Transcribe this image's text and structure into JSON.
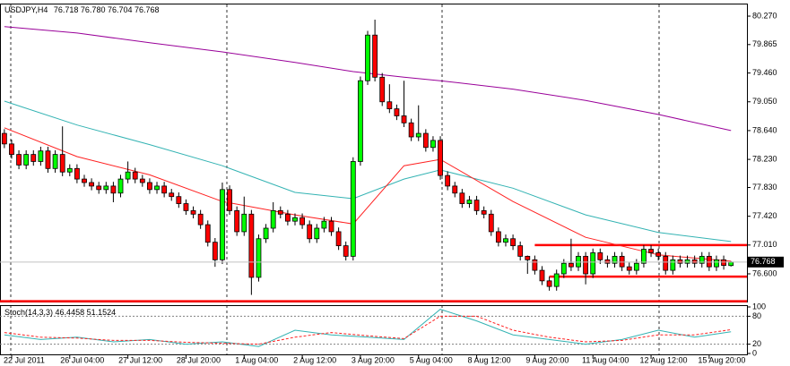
{
  "chart_data": [
    {
      "type": "candlestick",
      "title": "USDJPY,H4",
      "ohlc_labels": [
        "76.718",
        "76.780",
        "76.704",
        "76.768"
      ],
      "xlim": [
        -0.6,
        102.2
      ],
      "ylim": [
        76.205,
        80.436
      ],
      "yticks": [
        {
          "value": 80.27,
          "label": "80.270"
        },
        {
          "value": 79.865,
          "label": "79.865"
        },
        {
          "value": 79.46,
          "label": "79.460"
        },
        {
          "value": 79.05,
          "label": "79.050"
        },
        {
          "value": 78.64,
          "label": "78.640"
        },
        {
          "value": 78.23,
          "label": "78.230"
        },
        {
          "value": 77.83,
          "label": "77.830"
        },
        {
          "value": 77.42,
          "label": "77.420"
        },
        {
          "value": 77.01,
          "label": "77.010"
        },
        {
          "value": 76.6,
          "label": "76.600"
        }
      ],
      "xticks": [
        {
          "value": 1,
          "label": "22 Jul 2011"
        },
        {
          "value": 9,
          "label": "26 Jul 04:00"
        },
        {
          "value": 17,
          "label": "27 Jul 12:00"
        },
        {
          "value": 25,
          "label": "28 Jul 20:00"
        },
        {
          "value": 33,
          "label": "1 Aug 04:00"
        },
        {
          "value": 41,
          "label": "2 Aug 12:00"
        },
        {
          "value": 49,
          "label": "3 Aug 20:00"
        },
        {
          "value": 57,
          "label": "5 Aug 04:00"
        },
        {
          "value": 65,
          "label": "8 Aug 12:00"
        },
        {
          "value": 73,
          "label": "9 Aug 20:00"
        },
        {
          "value": 81,
          "label": "11 Aug 04:00"
        },
        {
          "value": 89,
          "label": "12 Aug 12:00"
        },
        {
          "value": 97,
          "label": "15 Aug 20:00"
        }
      ],
      "bull_color": "#00ff00",
      "bear_color": "#ff0000",
      "candles": [
        [
          78.6,
          78.66,
          78.39,
          78.45
        ],
        [
          78.45,
          78.51,
          78.24,
          78.3
        ],
        [
          78.3,
          78.36,
          78.09,
          78.15
        ],
        [
          78.15,
          78.36,
          78.09,
          78.3
        ],
        [
          78.3,
          78.36,
          78.14,
          78.2
        ],
        [
          78.2,
          78.41,
          78.14,
          78.35
        ],
        [
          78.35,
          78.41,
          78.04,
          78.1
        ],
        [
          78.1,
          78.36,
          78.04,
          78.3
        ],
        [
          78.3,
          78.7,
          77.99,
          78.05
        ],
        [
          78.05,
          78.16,
          77.99,
          78.1
        ],
        [
          78.1,
          78.16,
          77.89,
          77.95
        ],
        [
          77.95,
          78.01,
          77.84,
          77.9
        ],
        [
          77.9,
          77.96,
          77.79,
          77.85
        ],
        [
          77.85,
          77.91,
          77.74,
          77.8
        ],
        [
          77.8,
          77.91,
          77.74,
          77.85
        ],
        [
          77.85,
          77.91,
          77.62,
          77.75
        ],
        [
          77.75,
          78.01,
          77.69,
          77.95
        ],
        [
          77.95,
          78.2,
          77.89,
          78.05
        ],
        [
          78.05,
          78.11,
          77.89,
          77.95
        ],
        [
          77.95,
          78.01,
          77.84,
          77.9
        ],
        [
          77.9,
          77.96,
          77.74,
          77.8
        ],
        [
          77.8,
          77.91,
          77.74,
          77.85
        ],
        [
          77.85,
          77.91,
          77.69,
          77.75
        ],
        [
          77.75,
          77.81,
          77.64,
          77.7
        ],
        [
          77.7,
          77.76,
          77.54,
          77.6
        ],
        [
          77.6,
          77.66,
          77.44,
          77.5
        ],
        [
          77.5,
          77.56,
          77.39,
          77.45
        ],
        [
          77.45,
          77.51,
          77.24,
          77.3
        ],
        [
          77.3,
          77.36,
          76.99,
          77.05
        ],
        [
          77.05,
          77.11,
          76.7,
          76.8
        ],
        [
          76.8,
          77.9,
          76.74,
          77.8
        ],
        [
          77.8,
          77.86,
          77.44,
          77.5
        ],
        [
          77.5,
          77.56,
          77.14,
          77.2
        ],
        [
          77.2,
          77.7,
          77.14,
          77.45
        ],
        [
          77.45,
          77.51,
          76.3,
          76.55
        ],
        [
          76.55,
          77.16,
          76.49,
          77.1
        ],
        [
          77.1,
          77.31,
          77.04,
          77.25
        ],
        [
          77.25,
          77.62,
          77.19,
          77.5
        ],
        [
          77.5,
          77.56,
          77.39,
          77.45
        ],
        [
          77.45,
          77.51,
          77.29,
          77.35
        ],
        [
          77.35,
          77.46,
          77.29,
          77.4
        ],
        [
          77.4,
          77.46,
          77.24,
          77.3
        ],
        [
          77.3,
          77.36,
          77.04,
          77.1
        ],
        [
          77.1,
          77.31,
          77.04,
          77.25
        ],
        [
          77.25,
          77.41,
          77.19,
          77.35
        ],
        [
          77.35,
          77.41,
          77.14,
          77.2
        ],
        [
          77.2,
          77.26,
          76.94,
          77.0
        ],
        [
          77.0,
          77.06,
          76.79,
          76.85
        ],
        [
          76.85,
          78.26,
          76.79,
          78.2
        ],
        [
          78.2,
          79.41,
          78.14,
          79.35
        ],
        [
          79.35,
          80.06,
          79.29,
          80.0
        ],
        [
          80.0,
          80.22,
          79.34,
          79.4
        ],
        [
          79.4,
          79.46,
          78.99,
          79.05
        ],
        [
          79.05,
          79.3,
          78.89,
          78.95
        ],
        [
          78.95,
          79.01,
          78.79,
          78.85
        ],
        [
          78.85,
          79.35,
          78.69,
          78.75
        ],
        [
          78.75,
          78.81,
          78.49,
          78.55
        ],
        [
          78.55,
          79.0,
          78.49,
          78.6
        ],
        [
          78.6,
          78.66,
          78.34,
          78.4
        ],
        [
          78.4,
          78.56,
          78.34,
          78.5
        ],
        [
          78.5,
          78.56,
          77.94,
          78.0
        ],
        [
          78.0,
          78.06,
          77.79,
          77.85
        ],
        [
          77.85,
          77.91,
          77.69,
          77.75
        ],
        [
          77.75,
          77.81,
          77.54,
          77.6
        ],
        [
          77.6,
          77.71,
          77.54,
          77.65
        ],
        [
          77.65,
          77.71,
          77.44,
          77.5
        ],
        [
          77.5,
          77.56,
          77.39,
          77.45
        ],
        [
          77.45,
          77.51,
          77.14,
          77.2
        ],
        [
          77.2,
          77.26,
          76.99,
          77.05
        ],
        [
          77.05,
          77.16,
          76.99,
          77.1
        ],
        [
          77.1,
          77.16,
          76.94,
          77.0
        ],
        [
          77.0,
          77.06,
          76.79,
          76.85
        ],
        [
          76.85,
          76.86,
          76.6,
          76.8
        ],
        [
          76.8,
          76.86,
          76.59,
          76.65
        ],
        [
          76.65,
          76.71,
          76.44,
          76.5
        ],
        [
          76.5,
          76.56,
          76.36,
          76.42
        ],
        [
          76.42,
          76.66,
          76.36,
          76.6
        ],
        [
          76.6,
          76.81,
          76.54,
          76.75
        ],
        [
          76.75,
          77.1,
          76.64,
          76.7
        ],
        [
          76.7,
          76.91,
          76.64,
          76.85
        ],
        [
          76.85,
          76.91,
          76.45,
          76.6
        ],
        [
          76.6,
          76.96,
          76.54,
          76.9
        ],
        [
          76.9,
          76.96,
          76.74,
          76.8
        ],
        [
          76.8,
          76.86,
          76.69,
          76.75
        ],
        [
          76.75,
          76.91,
          76.69,
          76.85
        ],
        [
          76.85,
          76.91,
          76.64,
          76.7
        ],
        [
          76.7,
          76.76,
          76.59,
          76.65
        ],
        [
          76.65,
          76.81,
          76.59,
          76.75
        ],
        [
          76.75,
          77.01,
          76.69,
          76.95
        ],
        [
          76.95,
          77.01,
          76.84,
          76.9
        ],
        [
          76.9,
          76.96,
          76.79,
          76.85
        ],
        [
          76.85,
          76.91,
          76.59,
          76.65
        ],
        [
          76.65,
          76.86,
          76.59,
          76.8
        ],
        [
          76.8,
          76.86,
          76.69,
          76.75
        ],
        [
          76.75,
          76.86,
          76.69,
          76.8
        ],
        [
          76.8,
          76.86,
          76.69,
          76.75
        ],
        [
          76.75,
          76.91,
          76.69,
          76.85
        ],
        [
          76.85,
          76.91,
          76.64,
          76.7
        ],
        [
          76.7,
          76.86,
          76.64,
          76.8
        ],
        [
          76.8,
          76.86,
          76.66,
          76.72
        ],
        [
          76.718,
          76.78,
          76.704,
          76.768
        ]
      ],
      "ma_x": [
        0,
        10,
        20,
        30,
        40,
        48,
        55,
        60,
        70,
        80,
        90,
        100
      ],
      "series": [
        {
          "color": "#990099",
          "values": [
            80.12,
            80.03,
            79.89,
            79.76,
            79.61,
            79.48,
            79.4,
            79.35,
            79.23,
            79.07,
            78.87,
            78.64
          ]
        },
        {
          "color": "#33b3b3",
          "values": [
            79.06,
            78.72,
            78.44,
            78.14,
            77.76,
            77.67,
            77.95,
            78.08,
            77.82,
            77.44,
            77.19,
            77.06
          ]
        },
        {
          "color": "#ff2020",
          "values": [
            78.68,
            78.27,
            78.01,
            77.63,
            77.44,
            77.31,
            78.14,
            78.23,
            77.63,
            77.12,
            76.87,
            76.78
          ]
        }
      ],
      "hlines": [
        {
          "value": 77.01,
          "x": [
            73,
            102.2
          ],
          "color": "#ff0000"
        },
        {
          "value": 76.56,
          "x": [
            75,
            102.2
          ],
          "color": "#ff0000"
        },
        {
          "value": 76.21,
          "x": [
            -0.6,
            102.2
          ],
          "color": "#ff0000"
        }
      ]
    },
    {
      "type": "line",
      "title": "Stoch(14,3,3)",
      "xlim": [
        -0.6,
        102.2
      ],
      "ylim": [
        0,
        100
      ],
      "yticks": [
        0,
        20,
        80,
        100
      ],
      "levels": [
        20,
        80
      ],
      "x": [
        0,
        5,
        10,
        15,
        20,
        25,
        30,
        35,
        40,
        45,
        50,
        55,
        60,
        65,
        70,
        75,
        80,
        85,
        90,
        95,
        100
      ],
      "series": [
        {
          "color": "#33b3b3",
          "dash": false,
          "values": [
            40,
            30,
            35,
            25,
            30,
            20,
            25,
            15,
            50,
            40,
            35,
            30,
            95,
            70,
            40,
            30,
            20,
            30,
            50,
            35,
            46.4458
          ]
        },
        {
          "color": "#ff2020",
          "dash": true,
          "values": [
            45,
            35,
            33,
            28,
            28,
            24,
            22,
            20,
            35,
            45,
            38,
            32,
            80,
            80,
            50,
            35,
            25,
            28,
            40,
            40,
            51.1524
          ]
        }
      ]
    }
  ]
}
